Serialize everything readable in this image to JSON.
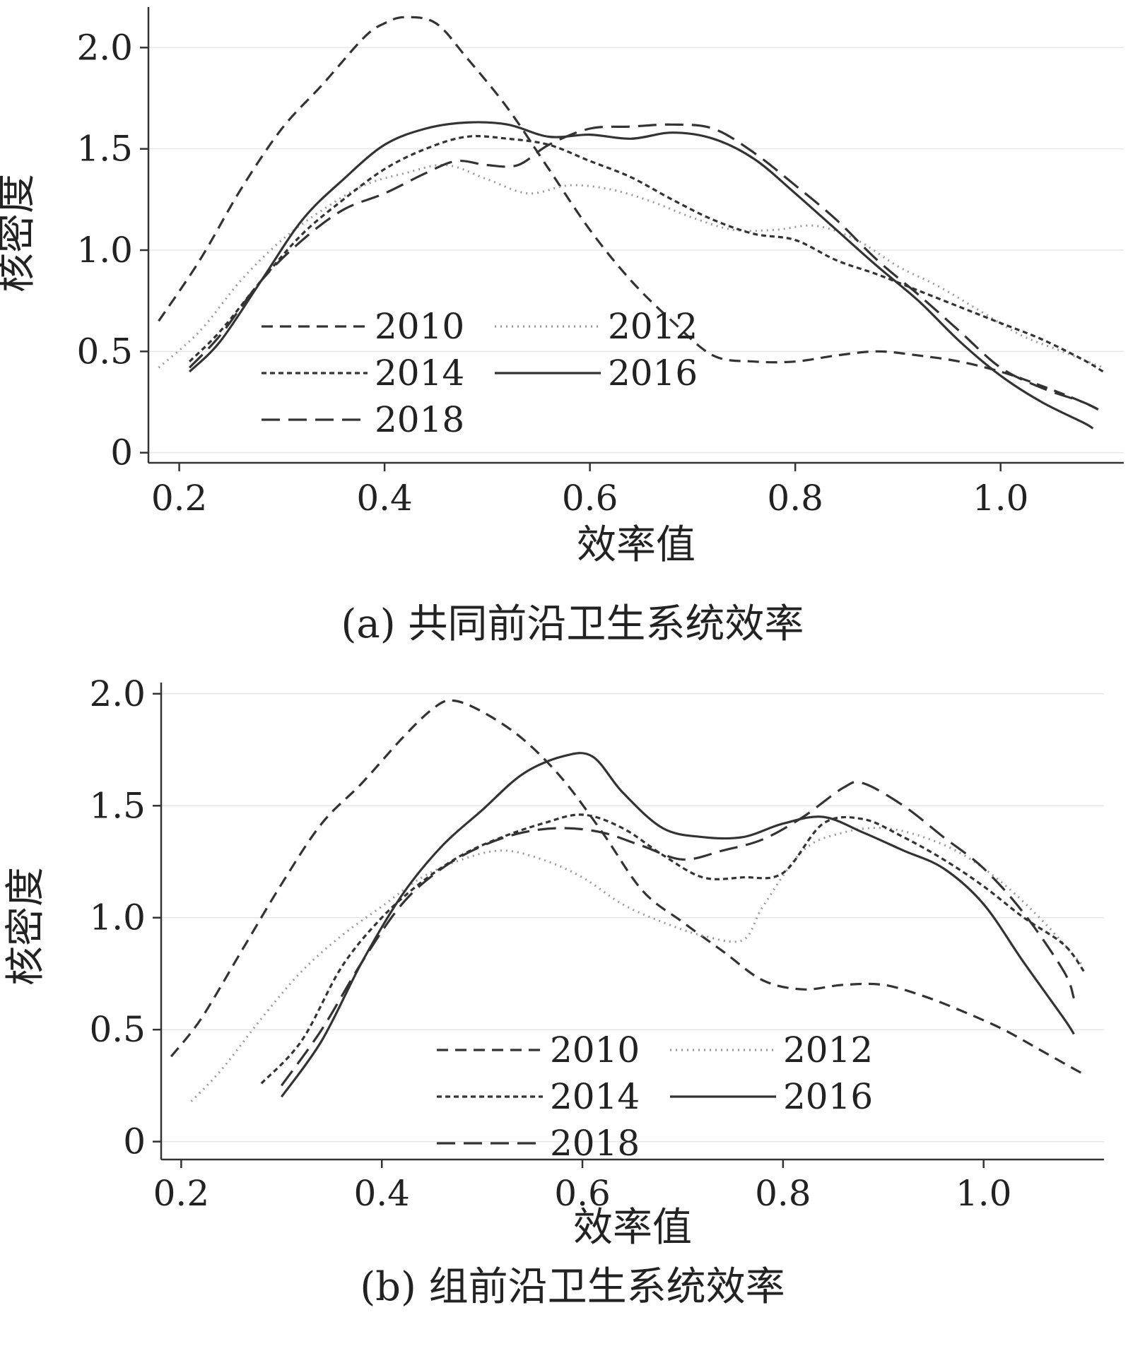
{
  "chart_data": [
    {
      "type": "line",
      "caption": "(a) 共同前沿卫生系统效率",
      "xlabel": "效率值",
      "ylabel": "核密度",
      "xlim": [
        0.17,
        1.12
      ],
      "ylim": [
        -0.05,
        2.2
      ],
      "xticks": [
        0.2,
        0.4,
        0.6,
        0.8,
        1.0
      ],
      "xtick_labels": [
        "0.2",
        "0.4",
        "0.6",
        "0.8",
        "1.0"
      ],
      "yticks": [
        0,
        0.5,
        1.0,
        1.5,
        2.0
      ],
      "ytick_labels": [
        "0",
        "0.5",
        "1.0",
        "1.5",
        "2.0"
      ],
      "grid": "horizontal",
      "legend_position": "lower-left",
      "series": [
        {
          "name": "2010",
          "dash": "16,10",
          "x": [
            0.18,
            0.22,
            0.26,
            0.3,
            0.34,
            0.38,
            0.4,
            0.42,
            0.45,
            0.48,
            0.52,
            0.56,
            0.6,
            0.64,
            0.68,
            0.72,
            0.76,
            0.8,
            0.84,
            0.88,
            0.92,
            0.96,
            1.0,
            1.04,
            1.08,
            1.1
          ],
          "y": [
            0.65,
            0.95,
            1.3,
            1.6,
            1.82,
            2.05,
            2.12,
            2.15,
            2.12,
            1.95,
            1.7,
            1.4,
            1.1,
            0.85,
            0.65,
            0.48,
            0.45,
            0.45,
            0.48,
            0.5,
            0.48,
            0.45,
            0.4,
            0.33,
            0.25,
            0.2
          ]
        },
        {
          "name": "2012",
          "dash": "2,6",
          "x": [
            0.18,
            0.22,
            0.26,
            0.3,
            0.34,
            0.38,
            0.42,
            0.46,
            0.5,
            0.54,
            0.58,
            0.62,
            0.66,
            0.7,
            0.74,
            0.78,
            0.82,
            0.86,
            0.9,
            0.94,
            0.98,
            1.02,
            1.06,
            1.1
          ],
          "y": [
            0.42,
            0.6,
            0.85,
            1.05,
            1.2,
            1.32,
            1.38,
            1.42,
            1.35,
            1.28,
            1.32,
            1.3,
            1.24,
            1.16,
            1.1,
            1.1,
            1.12,
            1.05,
            0.92,
            0.82,
            0.7,
            0.58,
            0.5,
            0.42
          ]
        },
        {
          "name": "2014",
          "dash": "7,5",
          "x": [
            0.21,
            0.24,
            0.28,
            0.32,
            0.36,
            0.4,
            0.44,
            0.48,
            0.52,
            0.56,
            0.6,
            0.64,
            0.68,
            0.72,
            0.76,
            0.8,
            0.84,
            0.88,
            0.92,
            0.96,
            1.0,
            1.04,
            1.08,
            1.1
          ],
          "y": [
            0.45,
            0.6,
            0.85,
            1.08,
            1.25,
            1.4,
            1.5,
            1.56,
            1.55,
            1.52,
            1.44,
            1.36,
            1.25,
            1.15,
            1.08,
            1.05,
            0.95,
            0.88,
            0.8,
            0.72,
            0.64,
            0.56,
            0.46,
            0.4
          ]
        },
        {
          "name": "2016",
          "dash": "",
          "x": [
            0.21,
            0.24,
            0.28,
            0.32,
            0.36,
            0.4,
            0.44,
            0.48,
            0.52,
            0.56,
            0.6,
            0.64,
            0.68,
            0.72,
            0.76,
            0.8,
            0.84,
            0.88,
            0.92,
            0.96,
            1.0,
            1.04,
            1.08,
            1.09
          ],
          "y": [
            0.4,
            0.55,
            0.85,
            1.15,
            1.35,
            1.52,
            1.6,
            1.63,
            1.62,
            1.56,
            1.57,
            1.55,
            1.58,
            1.55,
            1.45,
            1.28,
            1.1,
            0.92,
            0.75,
            0.55,
            0.38,
            0.25,
            0.15,
            0.12
          ]
        },
        {
          "name": "2018",
          "dash": "26,12",
          "x": [
            0.21,
            0.24,
            0.28,
            0.32,
            0.36,
            0.4,
            0.44,
            0.47,
            0.5,
            0.53,
            0.56,
            0.6,
            0.64,
            0.68,
            0.72,
            0.76,
            0.8,
            0.84,
            0.88,
            0.92,
            0.96,
            1.0,
            1.04,
            1.08,
            1.1
          ],
          "y": [
            0.42,
            0.58,
            0.85,
            1.05,
            1.2,
            1.28,
            1.38,
            1.44,
            1.42,
            1.42,
            1.52,
            1.6,
            1.61,
            1.62,
            1.6,
            1.48,
            1.32,
            1.15,
            0.95,
            0.78,
            0.6,
            0.42,
            0.32,
            0.25,
            0.2
          ]
        }
      ]
    },
    {
      "type": "line",
      "caption": "(b) 组前沿卫生系统效率",
      "xlabel": "效率值",
      "ylabel": "核密度",
      "xlim": [
        0.18,
        1.12
      ],
      "ylim": [
        -0.08,
        2.05
      ],
      "xticks": [
        0.2,
        0.4,
        0.6,
        0.8,
        1.0
      ],
      "xtick_labels": [
        "0.2",
        "0.4",
        "0.6",
        "0.8",
        "1.0"
      ],
      "yticks": [
        0,
        0.5,
        1.0,
        1.5,
        2.0
      ],
      "ytick_labels": [
        "0",
        "0.5",
        "1.0",
        "1.5",
        "2.0"
      ],
      "grid": "horizontal",
      "legend_position": "lower-center",
      "series": [
        {
          "name": "2010",
          "dash": "16,10",
          "x": [
            0.19,
            0.22,
            0.26,
            0.3,
            0.34,
            0.38,
            0.42,
            0.45,
            0.47,
            0.5,
            0.54,
            0.58,
            0.62,
            0.66,
            0.7,
            0.74,
            0.78,
            0.82,
            0.86,
            0.9,
            0.94,
            0.98,
            1.02,
            1.06,
            1.1
          ],
          "y": [
            0.38,
            0.55,
            0.85,
            1.15,
            1.42,
            1.6,
            1.8,
            1.93,
            1.97,
            1.92,
            1.8,
            1.62,
            1.38,
            1.12,
            0.98,
            0.85,
            0.72,
            0.68,
            0.7,
            0.7,
            0.65,
            0.58,
            0.5,
            0.4,
            0.3
          ]
        },
        {
          "name": "2012",
          "dash": "2,6",
          "x": [
            0.21,
            0.24,
            0.28,
            0.32,
            0.36,
            0.4,
            0.44,
            0.48,
            0.52,
            0.56,
            0.6,
            0.64,
            0.68,
            0.72,
            0.76,
            0.78,
            0.82,
            0.86,
            0.9,
            0.94,
            0.98,
            1.02,
            1.06,
            1.1
          ],
          "y": [
            0.18,
            0.32,
            0.55,
            0.76,
            0.92,
            1.05,
            1.18,
            1.26,
            1.3,
            1.26,
            1.18,
            1.06,
            0.98,
            0.92,
            0.9,
            1.05,
            1.3,
            1.38,
            1.4,
            1.36,
            1.28,
            1.15,
            0.98,
            0.78
          ]
        },
        {
          "name": "2014",
          "dash": "7,5",
          "x": [
            0.28,
            0.32,
            0.36,
            0.4,
            0.44,
            0.48,
            0.52,
            0.56,
            0.6,
            0.64,
            0.68,
            0.72,
            0.76,
            0.8,
            0.84,
            0.88,
            0.92,
            0.96,
            1.0,
            1.04,
            1.08,
            1.1
          ],
          "y": [
            0.26,
            0.45,
            0.78,
            1.0,
            1.16,
            1.28,
            1.36,
            1.42,
            1.46,
            1.4,
            1.28,
            1.18,
            1.18,
            1.2,
            1.42,
            1.44,
            1.36,
            1.26,
            1.14,
            1.0,
            0.88,
            0.76
          ]
        },
        {
          "name": "2016",
          "dash": "",
          "x": [
            0.3,
            0.34,
            0.38,
            0.42,
            0.46,
            0.5,
            0.54,
            0.58,
            0.61,
            0.64,
            0.68,
            0.72,
            0.76,
            0.8,
            0.84,
            0.88,
            0.92,
            0.96,
            1.0,
            1.04,
            1.08,
            1.09
          ],
          "y": [
            0.2,
            0.45,
            0.8,
            1.1,
            1.32,
            1.48,
            1.64,
            1.72,
            1.72,
            1.56,
            1.4,
            1.36,
            1.36,
            1.42,
            1.45,
            1.38,
            1.3,
            1.22,
            1.06,
            0.8,
            0.55,
            0.48
          ]
        },
        {
          "name": "2018",
          "dash": "26,12",
          "x": [
            0.3,
            0.34,
            0.38,
            0.42,
            0.46,
            0.5,
            0.54,
            0.58,
            0.62,
            0.66,
            0.7,
            0.74,
            0.78,
            0.82,
            0.86,
            0.88,
            0.92,
            0.96,
            1.0,
            1.04,
            1.08,
            1.09
          ],
          "y": [
            0.25,
            0.5,
            0.8,
            1.06,
            1.22,
            1.32,
            1.38,
            1.4,
            1.38,
            1.32,
            1.26,
            1.3,
            1.35,
            1.45,
            1.58,
            1.6,
            1.5,
            1.36,
            1.22,
            1.02,
            0.76,
            0.64
          ]
        }
      ]
    }
  ]
}
